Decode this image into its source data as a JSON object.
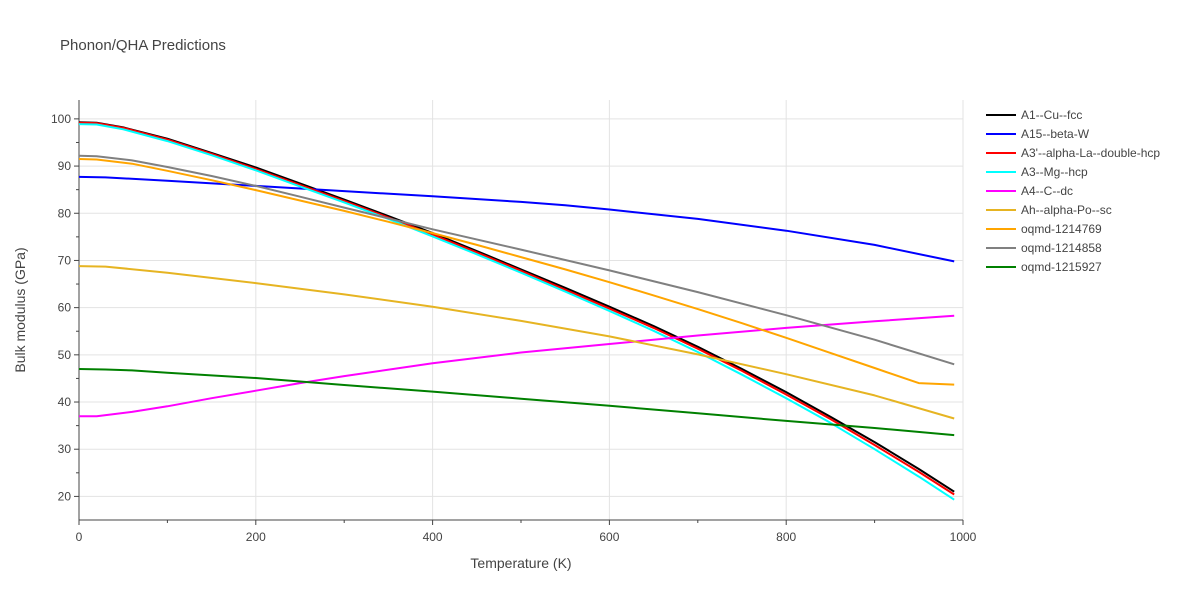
{
  "chart_data": {
    "type": "line",
    "title": "Phonon/QHA Predictions",
    "xlabel": "Temperature (K)",
    "ylabel": "Bulk modulus (GPa)",
    "xlim": [
      0,
      1000
    ],
    "ylim": [
      15,
      104
    ],
    "xticks": [
      0,
      200,
      400,
      600,
      800,
      1000
    ],
    "yticks": [
      20,
      30,
      40,
      50,
      60,
      70,
      80,
      90,
      100
    ],
    "grid": true,
    "legend_position": "right",
    "series": [
      {
        "name": "A1--Cu--fcc",
        "color": "#000000",
        "x": [
          0,
          20,
          50,
          100,
          150,
          200,
          250,
          300,
          350,
          400,
          450,
          500,
          550,
          600,
          650,
          700,
          750,
          800,
          850,
          900,
          950,
          990
        ],
        "y": [
          99.3,
          99.2,
          98.2,
          95.8,
          92.8,
          89.7,
          86.3,
          82.9,
          79.4,
          75.8,
          72.0,
          68.1,
          64.2,
          60.2,
          56.1,
          51.7,
          47.0,
          42.1,
          36.9,
          31.5,
          25.8,
          21.0
        ]
      },
      {
        "name": "A15--beta-W",
        "color": "#0000ff",
        "x": [
          0,
          30,
          100,
          200,
          300,
          400,
          500,
          550,
          600,
          700,
          800,
          900,
          990
        ],
        "y": [
          87.7,
          87.6,
          86.9,
          85.8,
          84.7,
          83.6,
          82.4,
          81.7,
          80.8,
          78.8,
          76.3,
          73.3,
          69.8
        ]
      },
      {
        "name": "A3'--alpha-La--double-hcp",
        "color": "#ff0000",
        "x": [
          0,
          20,
          50,
          100,
          150,
          200,
          250,
          300,
          350,
          400,
          450,
          500,
          550,
          600,
          650,
          700,
          750,
          800,
          850,
          900,
          950,
          990
        ],
        "y": [
          99.2,
          99.1,
          98.1,
          95.6,
          92.6,
          89.4,
          86.0,
          82.6,
          79.1,
          75.5,
          71.7,
          67.8,
          63.8,
          59.8,
          55.7,
          51.3,
          46.6,
          41.6,
          36.4,
          30.9,
          25.2,
          20.4
        ]
      },
      {
        "name": "A3--Mg--hcp",
        "color": "#00ffff",
        "x": [
          0,
          20,
          50,
          100,
          150,
          200,
          250,
          300,
          350,
          400,
          450,
          500,
          550,
          600,
          650,
          700,
          750,
          800,
          850,
          900,
          950,
          990
        ],
        "y": [
          98.9,
          98.8,
          97.8,
          95.3,
          92.3,
          89.1,
          85.7,
          82.3,
          78.8,
          75.1,
          71.3,
          67.4,
          63.4,
          59.3,
          55.1,
          50.6,
          45.8,
          40.8,
          35.6,
          30.0,
          24.2,
          19.3
        ]
      },
      {
        "name": "A4--C--dc",
        "color": "#ff00ff",
        "x": [
          0,
          20,
          60,
          100,
          150,
          200,
          250,
          300,
          400,
          500,
          600,
          700,
          800,
          900,
          990
        ],
        "y": [
          37.0,
          37.0,
          37.9,
          39.1,
          40.8,
          42.4,
          44.0,
          45.5,
          48.2,
          50.5,
          52.3,
          54.1,
          55.7,
          57.1,
          58.3
        ]
      },
      {
        "name": "Ah--alpha-Po--sc",
        "color": "#e6b422",
        "x": [
          0,
          30,
          100,
          200,
          300,
          400,
          500,
          600,
          700,
          800,
          900,
          990
        ],
        "y": [
          68.8,
          68.7,
          67.4,
          65.2,
          62.8,
          60.2,
          57.2,
          53.9,
          50.1,
          45.9,
          41.4,
          36.5
        ]
      },
      {
        "name": "oqmd-1214769",
        "color": "#ffa500",
        "x": [
          0,
          20,
          60,
          100,
          150,
          200,
          250,
          300,
          350,
          400,
          450,
          500,
          550,
          600,
          650,
          700,
          750,
          800,
          850,
          900,
          950,
          990
        ],
        "y": [
          91.5,
          91.4,
          90.5,
          89.0,
          87.0,
          84.9,
          82.7,
          80.5,
          78.2,
          75.8,
          73.3,
          70.7,
          68.1,
          65.4,
          62.6,
          59.7,
          56.7,
          53.6,
          50.4,
          47.2,
          44.0,
          43.7
        ]
      },
      {
        "name": "oqmd-1214858",
        "color": "#808080",
        "x": [
          0,
          20,
          60,
          100,
          150,
          200,
          250,
          300,
          350,
          400,
          500,
          600,
          700,
          800,
          900,
          990
        ],
        "y": [
          92.2,
          92.1,
          91.2,
          89.8,
          87.9,
          85.8,
          83.5,
          81.2,
          78.9,
          76.6,
          72.3,
          67.9,
          63.3,
          58.4,
          53.2,
          48.0
        ]
      },
      {
        "name": "oqmd-1215927",
        "color": "#008000",
        "x": [
          0,
          30,
          60,
          100,
          200,
          300,
          400,
          500,
          600,
          700,
          800,
          900,
          990
        ],
        "y": [
          47.0,
          46.9,
          46.7,
          46.2,
          45.1,
          43.6,
          42.2,
          40.7,
          39.2,
          37.6,
          36.0,
          34.5,
          33.0
        ]
      }
    ]
  }
}
